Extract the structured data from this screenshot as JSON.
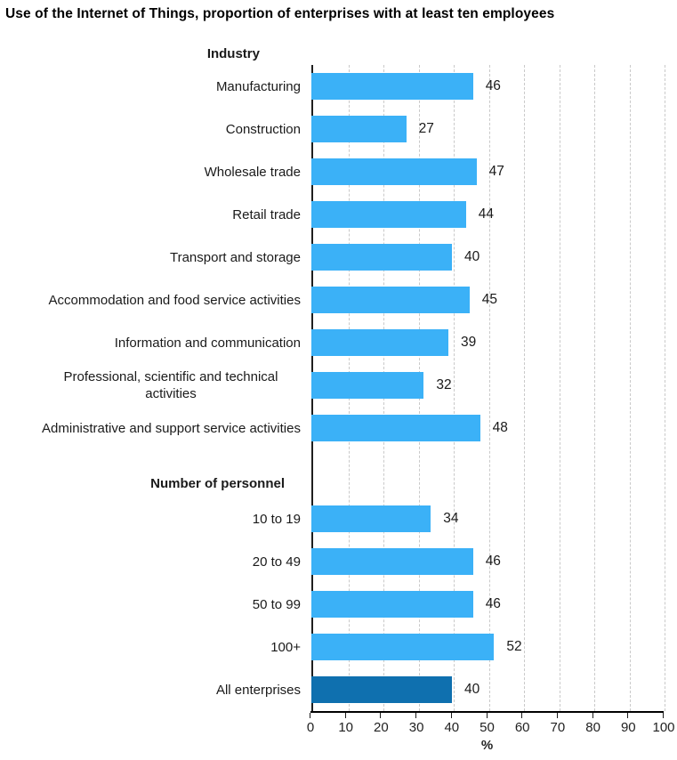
{
  "colors": {
    "bar": "#3BB1F7",
    "bar_highlight": "#0F70AF",
    "grid": "#c9c9c9",
    "axis": "#000000",
    "text": "#1a1a1a"
  },
  "chart_data": {
    "type": "bar",
    "orientation": "horizontal",
    "title": "Use of the Internet of Things, proportion of enterprises with at least ten employees",
    "xlabel": "%",
    "xlim": [
      0,
      100
    ],
    "xticks": [
      0,
      10,
      20,
      30,
      40,
      50,
      60,
      70,
      80,
      90,
      100
    ],
    "grid": "vertical-dashed",
    "value_labels": true,
    "groups": [
      {
        "header": "Industry",
        "items": [
          {
            "label": "Manufacturing",
            "value": 46
          },
          {
            "label": "Construction",
            "value": 27
          },
          {
            "label": "Wholesale trade",
            "value": 47
          },
          {
            "label": "Retail trade",
            "value": 44
          },
          {
            "label": "Transport and storage",
            "value": 40
          },
          {
            "label": "Accommodation and food service activities",
            "value": 45
          },
          {
            "label": "Information and communication",
            "value": 39
          },
          {
            "label": "Professional, scientific and technical activities",
            "value": 32
          },
          {
            "label": "Administrative and support service activities",
            "value": 48
          }
        ]
      },
      {
        "header": "Number of personnel",
        "items": [
          {
            "label": "10 to 19",
            "value": 34
          },
          {
            "label": "20 to 49",
            "value": 46
          },
          {
            "label": "50 to 99",
            "value": 46
          },
          {
            "label": "100+",
            "value": 52
          },
          {
            "label": "All enterprises",
            "value": 40,
            "highlight": true
          }
        ]
      }
    ]
  }
}
